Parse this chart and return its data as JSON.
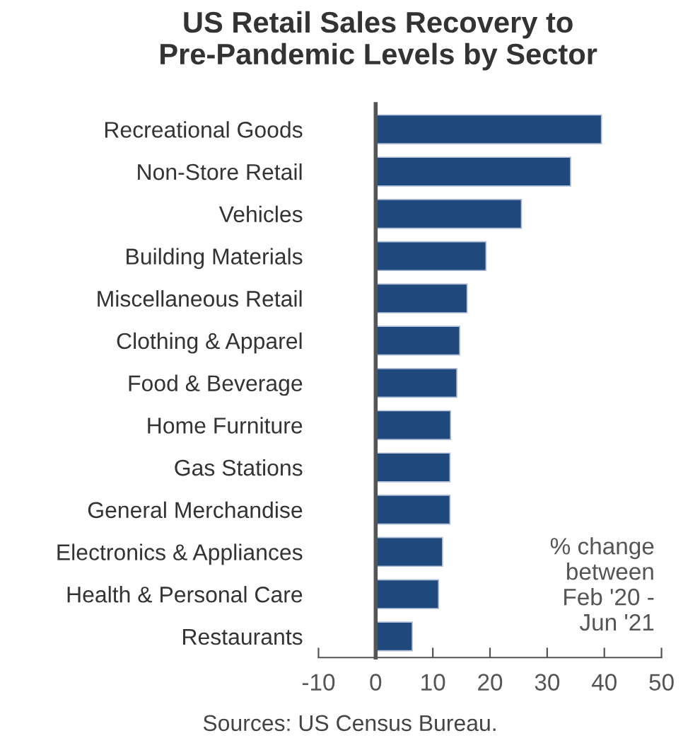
{
  "chart_data": {
    "type": "bar",
    "orientation": "horizontal",
    "title": "US Retail Sales Recovery to\nPre-Pandemic Levels by Sector",
    "categories": [
      "Recreational Goods",
      "Non-Store Retail",
      "Vehicles",
      "Building Materials",
      "Miscellaneous Retail",
      "Clothing & Apparel",
      "Food & Beverage",
      "Home Furniture",
      "Gas Stations",
      "General Merchandise",
      "Electronics & Appliances",
      "Health & Personal Care",
      "Restaurants"
    ],
    "values": [
      39.5,
      34.1,
      25.5,
      19.3,
      16.0,
      14.7,
      14.2,
      13.1,
      13.0,
      13.0,
      11.7,
      11.0,
      6.4
    ],
    "color": "#1f497d",
    "xlim": [
      -10,
      50
    ],
    "xticks": [
      -10,
      0,
      10,
      20,
      30,
      40,
      50
    ],
    "legend": false,
    "annotations": [
      "% change\nbetween\nFeb '20 -\nJun '21",
      "Sources: US Census Bureau."
    ]
  }
}
